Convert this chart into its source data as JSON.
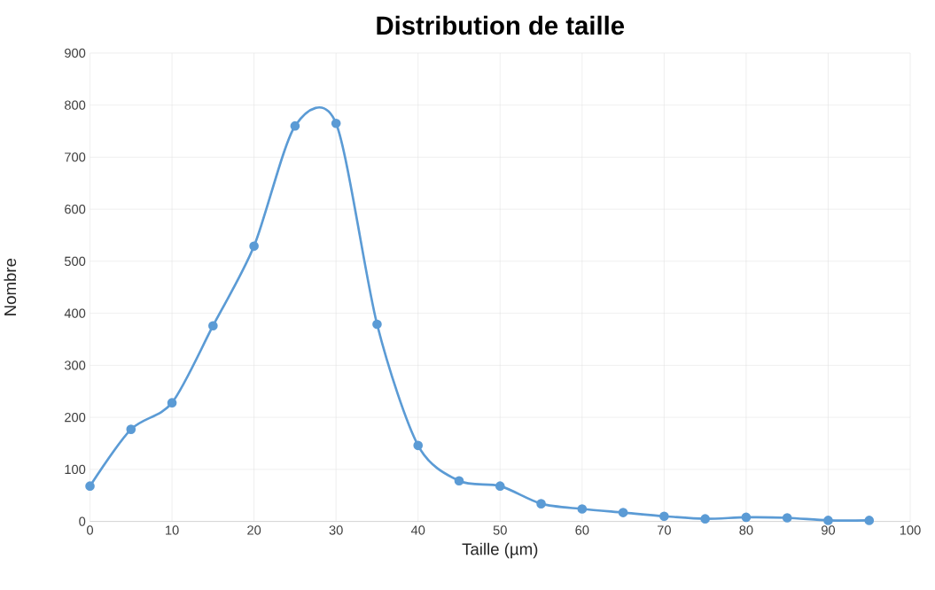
{
  "chart_data": {
    "type": "line",
    "title": "Distribution de taille",
    "xlabel": "Taille (µm)",
    "ylabel": "Nombre",
    "x": [
      0,
      5,
      10,
      15,
      20,
      25,
      30,
      35,
      40,
      45,
      50,
      55,
      60,
      65,
      70,
      75,
      80,
      85,
      90,
      95
    ],
    "series": [
      {
        "color": "#5b9bd5",
        "values": [
          68,
          177,
          228,
          376,
          529,
          760,
          765,
          379,
          146,
          78,
          68,
          34,
          24,
          17,
          10,
          5,
          8,
          7,
          2,
          2
        ]
      }
    ],
    "xlim": [
      0,
      100
    ],
    "xticks": [
      0,
      10,
      20,
      30,
      40,
      50,
      60,
      70,
      80,
      90,
      100
    ],
    "ylim": [
      0,
      900
    ],
    "yticks": [
      0,
      100,
      200,
      300,
      400,
      500,
      600,
      700,
      800,
      900
    ],
    "grid": true,
    "marker": "circle",
    "line_style": "solid"
  }
}
